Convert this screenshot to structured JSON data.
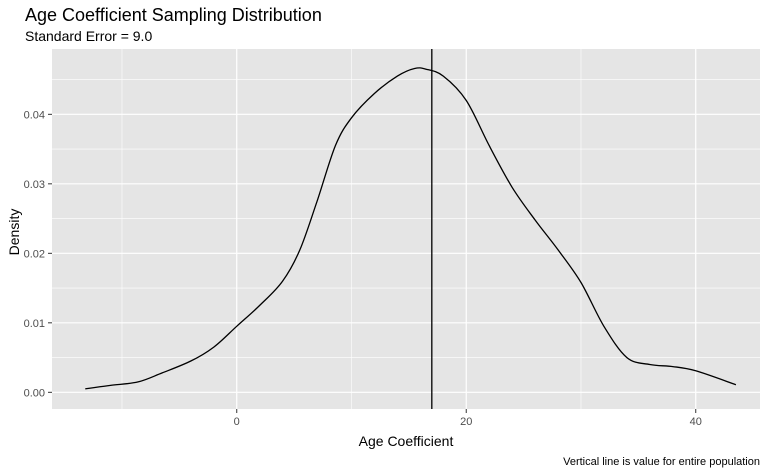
{
  "chart_data": {
    "type": "line",
    "title": "Age Coefficient Sampling Distribution",
    "subtitle": "Standard Error = 9.0",
    "xlabel": "Age Coefficient",
    "ylabel": "Density",
    "caption": "Vertical line is value for entire population",
    "xlim": [
      -16.1,
      45.6
    ],
    "ylim": [
      -0.0024,
      0.0494
    ],
    "x_ticks": [
      0,
      20,
      40
    ],
    "x_tick_labels": [
      "0",
      "20",
      "40"
    ],
    "y_ticks": [
      0,
      0.01,
      0.02,
      0.03,
      0.04
    ],
    "y_tick_labels": [
      "0.00",
      "0.01",
      "0.02",
      "0.03",
      "0.04"
    ],
    "x_minor_ticks": [
      -10,
      10,
      30
    ],
    "y_minor_ticks": [
      0.005,
      0.015,
      0.025,
      0.035,
      0.045
    ],
    "grid": true,
    "legend": "none",
    "colors": {
      "panel": "#e5e5e5",
      "grid": "#ffffff",
      "line": "#000000",
      "tick_text": "#4d4d4d"
    },
    "series": [
      {
        "x": [
          -13.2,
          -11,
          -8.6,
          -6.5,
          -4,
          -2,
          0,
          2,
          4,
          5.5,
          7,
          8.6,
          10,
          12,
          14,
          15.5,
          16.5,
          18,
          20,
          22,
          24,
          26,
          28,
          30,
          32,
          34,
          36,
          38,
          40,
          43.5
        ],
        "values": [
          0.0005,
          0.001,
          0.0015,
          0.0028,
          0.0045,
          0.0065,
          0.0095,
          0.0125,
          0.016,
          0.0205,
          0.0275,
          0.0355,
          0.0395,
          0.043,
          0.0455,
          0.0466,
          0.0465,
          0.0455,
          0.042,
          0.0355,
          0.0295,
          0.0248,
          0.0205,
          0.0158,
          0.0095,
          0.005,
          0.004,
          0.0037,
          0.0031,
          0.0011
        ]
      }
    ],
    "reference_line": {
      "x": 17
    }
  }
}
